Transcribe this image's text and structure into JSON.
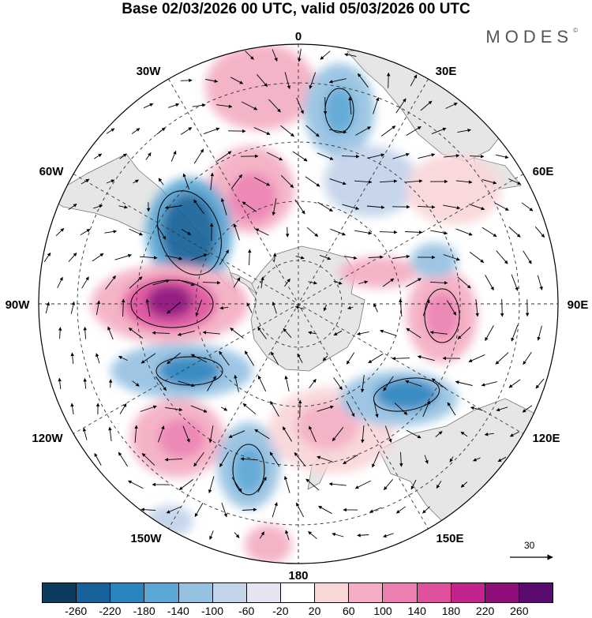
{
  "title": "Base 02/03/2026 00 UTC, valid 05/03/2026 00 UTC",
  "brand": "MODES",
  "brand_mark": "©",
  "longitude_labels": {
    "top": "0",
    "bottom": "180",
    "w30": "30W",
    "e30": "30E",
    "w60": "60W",
    "e60": "60E",
    "w90": "90W",
    "e90": "90E",
    "w120": "120W",
    "e120": "120E",
    "w150": "150W",
    "e150": "150E"
  },
  "reference_vector": {
    "label": "30"
  },
  "colorbar": {
    "colors": [
      "#0d3b5e",
      "#16629a",
      "#2a84c0",
      "#5aa6d4",
      "#96c2e2",
      "#c3d3ea",
      "#e4e4f3",
      "#ffffff",
      "#f9d6d8",
      "#f4aec3",
      "#ec7fb1",
      "#e0509d",
      "#c3238a",
      "#8f0e7a",
      "#5b0a6e"
    ],
    "ticks": [
      "-260",
      "-220",
      "-180",
      "-140",
      "-100",
      "-60",
      "-20",
      "20",
      "60",
      "100",
      "140",
      "180",
      "220",
      "260"
    ]
  },
  "anomalies": [
    {
      "name": "neg-anomaly-1",
      "color": "#16629a"
    },
    {
      "name": "pos-anomaly-1",
      "color": "#c3238a"
    },
    {
      "name": "neg-anomaly-2",
      "color": "#2a84c0"
    },
    {
      "name": "neg-anomaly-3",
      "color": "#2a84c0"
    },
    {
      "name": "pos-anomaly-2",
      "color": "#ec7fb1"
    },
    {
      "name": "neg-anomaly-4",
      "color": "#5aa6d4"
    },
    {
      "name": "pos-anomaly-3",
      "color": "#ec7fb1"
    },
    {
      "name": "pos-anomaly-4",
      "color": "#e0509d"
    },
    {
      "name": "neg-anomaly-5",
      "color": "#5aa6d4"
    },
    {
      "name": "pos-anomaly-5",
      "color": "#f4aec3"
    }
  ]
}
